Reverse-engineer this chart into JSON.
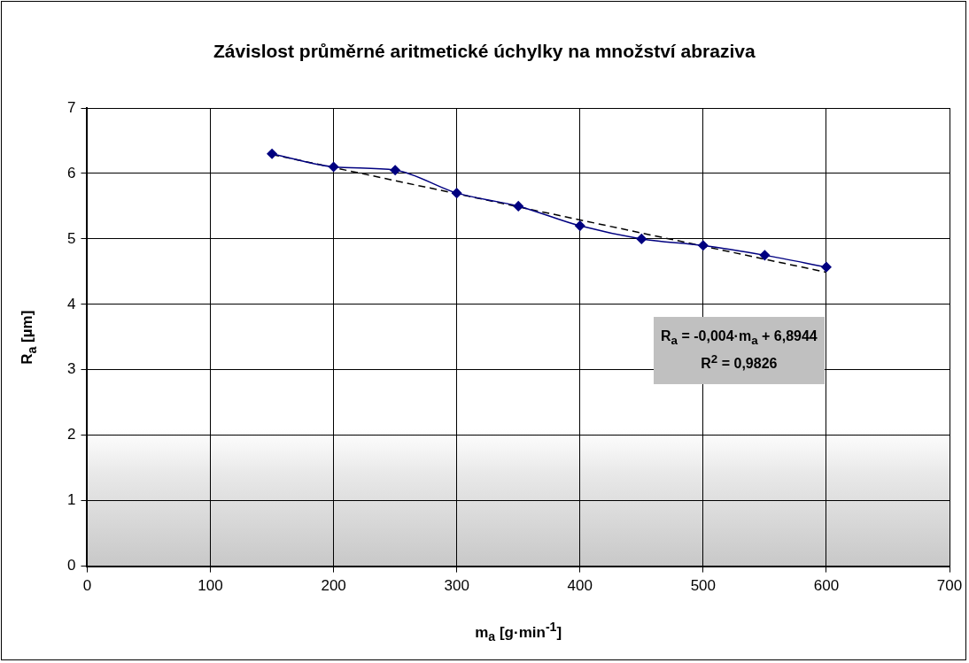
{
  "chart_data": {
    "type": "line",
    "title": "Závislost průměrné aritmetické úchylky na množství abraziva",
    "xlabel": "m$_{a}$ [g·min$^{-1}$]",
    "ylabel": "R$_{a}$ [µm]",
    "x": [
      150,
      200,
      250,
      300,
      350,
      400,
      450,
      500,
      550,
      600
    ],
    "series": [
      {
        "color": "#000080",
        "values": [
          6.3,
          6.1,
          6.05,
          5.7,
          5.5,
          5.2,
          5.0,
          4.9,
          4.75,
          4.57
        ],
        "marker": "diamond",
        "line_style": "solid"
      },
      {
        "type": "line",
        "x": [
          150,
          600
        ],
        "color": "#000000",
        "values": [
          6.29,
          4.49
        ],
        "marker": "none",
        "line_style": "dashed"
      }
    ],
    "xlim": [
      0,
      700
    ],
    "xticks": [
      0,
      100,
      200,
      300,
      400,
      500,
      600,
      700
    ],
    "ylim": [
      0,
      7
    ],
    "yticks": [
      0,
      1,
      2,
      3,
      4,
      5,
      6,
      7
    ],
    "grid": true,
    "legend": false,
    "annotations": [
      "R$_{a}$ = -0,004·m$_{a}$ + 6,8944",
      "R$^{2}$ = 0,9826"
    ]
  }
}
